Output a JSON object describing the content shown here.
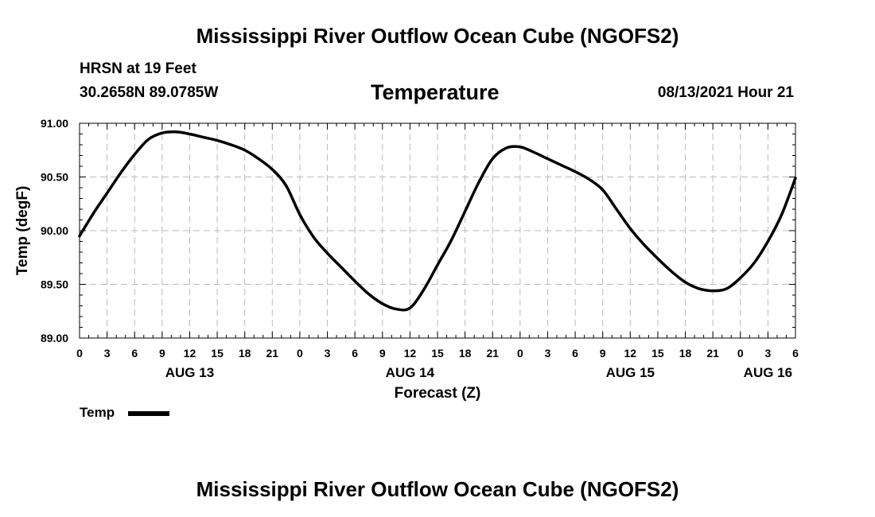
{
  "header": {
    "title": "Mississippi River Outflow Ocean Cube (NGOFS2)",
    "station": "HRSN at 19 Feet",
    "coords": "30.2658N  89.0785W",
    "parameter": "Temperature",
    "datetime": "08/13/2021 Hour 21"
  },
  "footer": {
    "title": "Mississippi River Outflow Ocean Cube (NGOFS2)"
  },
  "legend": {
    "label": "Temp"
  },
  "chart_data": {
    "type": "line",
    "title": "Temperature",
    "xlabel": "Forecast (Z)",
    "ylabel": "Temp (degF)",
    "ylim": [
      89.0,
      91.0
    ],
    "xlim": [
      0,
      78
    ],
    "x_unit": "hours since 08/13 00Z",
    "grid": true,
    "legend_position": "bottom-left",
    "yticks": [
      "89.00",
      "89.50",
      "90.00",
      "90.50",
      "91.00"
    ],
    "yticks_values": [
      89.0,
      89.5,
      90.0,
      90.5,
      91.0
    ],
    "xticks_labels": [
      "0",
      "3",
      "6",
      "9",
      "12",
      "15",
      "18",
      "21",
      "0",
      "3",
      "6",
      "9",
      "12",
      "15",
      "18",
      "21",
      "0",
      "3",
      "6",
      "9",
      "12",
      "15",
      "18",
      "21",
      "0",
      "3",
      "6"
    ],
    "xticks_values": [
      0,
      3,
      6,
      9,
      12,
      15,
      18,
      21,
      24,
      27,
      30,
      33,
      36,
      39,
      42,
      45,
      48,
      51,
      54,
      57,
      60,
      63,
      66,
      69,
      72,
      75,
      78
    ],
    "date_labels": [
      {
        "label": "AUG 13",
        "hour": 12
      },
      {
        "label": "AUG 14",
        "hour": 36
      },
      {
        "label": "AUG 15",
        "hour": 60
      },
      {
        "label": "AUG 16",
        "hour": 75
      }
    ],
    "series": [
      {
        "name": "Temp",
        "color": "#000000",
        "x": [
          0,
          1.5,
          3,
          4.5,
          6,
          7.5,
          9,
          10.5,
          12,
          13.5,
          15,
          16.5,
          18,
          19.5,
          21,
          22.5,
          24,
          25.5,
          27,
          28.5,
          30,
          31.5,
          33,
          34.5,
          36,
          37.5,
          39,
          40.5,
          42,
          43.5,
          45,
          46.5,
          48,
          49.5,
          51,
          52.5,
          54,
          55.5,
          57,
          58.5,
          60,
          61.5,
          63,
          64.5,
          66,
          67.5,
          69,
          70.5,
          72,
          73.5,
          75,
          76.5,
          78
        ],
        "values": [
          89.95,
          90.16,
          90.35,
          90.54,
          90.71,
          90.85,
          90.91,
          90.92,
          90.9,
          90.87,
          90.84,
          90.8,
          90.75,
          90.67,
          90.57,
          90.42,
          90.15,
          89.94,
          89.79,
          89.66,
          89.53,
          89.41,
          89.32,
          89.27,
          89.28,
          89.45,
          89.68,
          89.91,
          90.18,
          90.45,
          90.67,
          90.77,
          90.78,
          90.73,
          90.67,
          90.61,
          90.55,
          90.48,
          90.38,
          90.2,
          90.02,
          89.87,
          89.74,
          89.62,
          89.52,
          89.46,
          89.44,
          89.46,
          89.56,
          89.7,
          89.9,
          90.15,
          90.49
        ]
      }
    ]
  }
}
